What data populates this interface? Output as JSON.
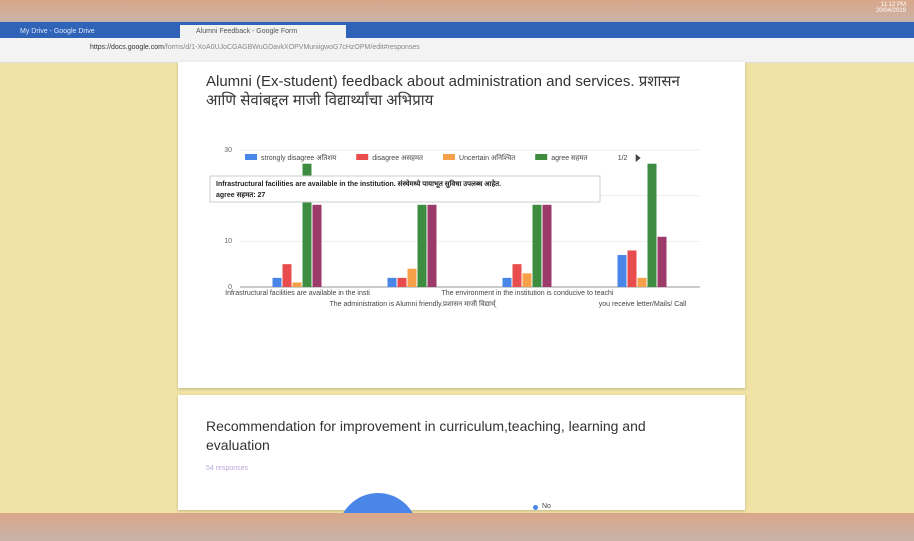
{
  "browser": {
    "tabs": [
      "My Drive - Google Drive",
      "Alumni Feedback - Google Form"
    ],
    "url_host": "https://docs.google.com",
    "url_path": "/forms/d/1-XoA0UJoCGAGBWuGDavkXOPVMuniigwoG7cHzOPM/edit#responses",
    "time": "11:12 PM",
    "date": "20/04/2019"
  },
  "card1": {
    "title": "Alumni (Ex-student) feedback about administration and services. प्रशासन आणि सेवांबद्दल माजी विद्यार्थ्यांचा अभिप्राय",
    "tooltip": {
      "title": "Infrastructural facilities are available in the institution. संस्थेमध्ये पायाभूत सुविधा उपलब्ध आहेत."
    },
    "pager": "1/2"
  },
  "chart_data": {
    "type": "bar",
    "categories": [
      "Infrastructural facilities are available in the insti",
      "The administration is Alumni friendly.प्रशासन माजी विद्यार्थ्",
      "The environment in the institution is conducive to teachi",
      "you receive letter/Mails/ Call"
    ],
    "series": [
      {
        "name": "strongly disagree अतिशय",
        "color": "#4a86e8",
        "values": [
          2,
          2,
          2,
          7
        ]
      },
      {
        "name": "disagree असहमत",
        "color": "#e84c4c",
        "values": [
          5,
          2,
          5,
          8
        ]
      },
      {
        "name": "Uncertain अनिश्चित",
        "color": "#f6a14a",
        "values": [
          1,
          4,
          3,
          2
        ]
      },
      {
        "name": "agree सहमत",
        "color": "#3d8c40",
        "values": [
          27,
          18,
          18,
          27
        ]
      },
      {
        "color": "#9c3a6a",
        "values": [
          18,
          18,
          18,
          11
        ]
      }
    ],
    "ylim": [
      0,
      30
    ],
    "yticks": [
      0,
      10,
      20,
      30
    ],
    "grid": true
  },
  "card2": {
    "title": "Recommendation for improvement in curriculum,teaching, learning and evaluation",
    "responses": "54 responses",
    "legend": "No"
  }
}
